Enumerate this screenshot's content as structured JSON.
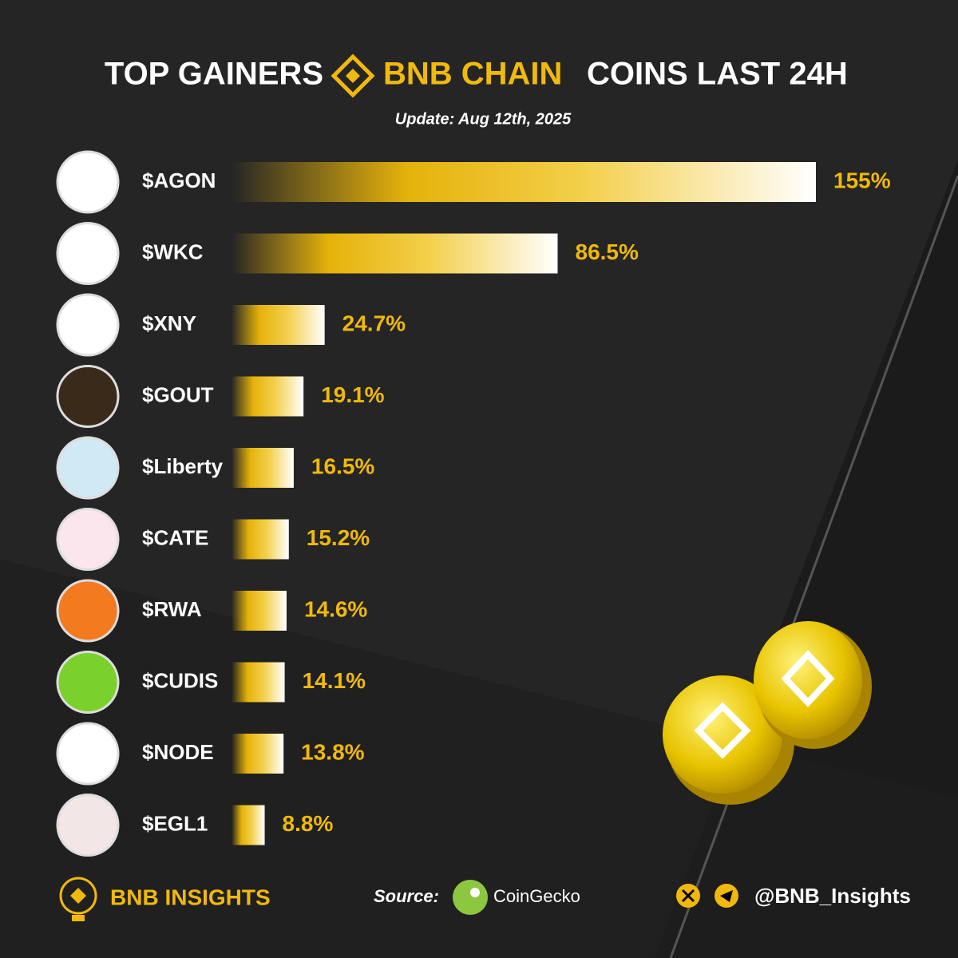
{
  "chart_data": {
    "type": "bar",
    "orientation": "horizontal",
    "title": [
      "TOP GAINERS",
      "BNB CHAIN",
      "COINS LAST 24H"
    ],
    "subtitle": "Update: Aug 12th, 2025",
    "categories": [
      "$AGON",
      "$WKC",
      "$XNY",
      "$GOUT",
      "$Liberty",
      "$CATE",
      "$RWA",
      "$CUDIS",
      "$NODE",
      "$EGL1"
    ],
    "values": [
      155,
      86.5,
      24.7,
      19.1,
      16.5,
      15.2,
      14.6,
      14.1,
      13.8,
      8.8
    ],
    "value_labels": [
      "155%",
      "86.5%",
      "24.7%",
      "19.1%",
      "16.5%",
      "15.2%",
      "14.6%",
      "14.1%",
      "13.8%",
      "8.8%"
    ],
    "color": "#f0b90b"
  },
  "footer": {
    "brand": "BNB INSIGHTS",
    "source_label": "Source:",
    "source": "CoinGecko",
    "handle": "@BNB_Insights"
  }
}
